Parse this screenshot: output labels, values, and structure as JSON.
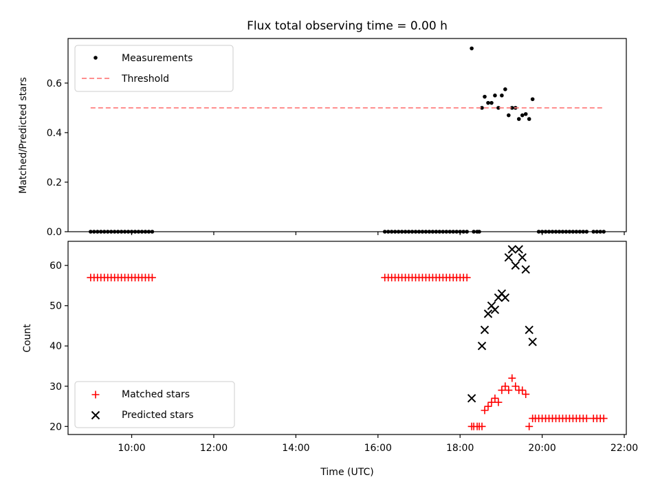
{
  "chart_data": [
    {
      "type": "scatter",
      "title": "Flux total observing time = 0.00 h",
      "ylabel": "Matched/Predicted stars",
      "xlim": [
        "08:27",
        "22:03"
      ],
      "ylim": [
        0,
        0.78
      ],
      "yticks": [
        "0.0",
        "0.2",
        "0.4",
        "0.6"
      ],
      "legend_placement": "top-left",
      "series": [
        {
          "name": "Measurements",
          "marker": "dot",
          "color": "#000000",
          "points": [
            [
              "09:00",
              0
            ],
            [
              "09:05",
              0
            ],
            [
              "09:10",
              0
            ],
            [
              "09:15",
              0
            ],
            [
              "09:20",
              0
            ],
            [
              "09:25",
              0
            ],
            [
              "09:30",
              0
            ],
            [
              "09:35",
              0
            ],
            [
              "09:40",
              0
            ],
            [
              "09:45",
              0
            ],
            [
              "09:50",
              0
            ],
            [
              "09:55",
              0
            ],
            [
              "10:00",
              0
            ],
            [
              "10:05",
              0
            ],
            [
              "10:10",
              0
            ],
            [
              "10:15",
              0
            ],
            [
              "10:20",
              0
            ],
            [
              "10:25",
              0
            ],
            [
              "10:30",
              0
            ],
            [
              "16:10",
              0
            ],
            [
              "16:15",
              0
            ],
            [
              "16:20",
              0
            ],
            [
              "16:25",
              0
            ],
            [
              "16:30",
              0
            ],
            [
              "16:35",
              0
            ],
            [
              "16:40",
              0
            ],
            [
              "16:45",
              0
            ],
            [
              "16:50",
              0
            ],
            [
              "16:55",
              0
            ],
            [
              "17:00",
              0
            ],
            [
              "17:05",
              0
            ],
            [
              "17:10",
              0
            ],
            [
              "17:15",
              0
            ],
            [
              "17:20",
              0
            ],
            [
              "17:25",
              0
            ],
            [
              "17:30",
              0
            ],
            [
              "17:35",
              0
            ],
            [
              "17:40",
              0
            ],
            [
              "17:45",
              0
            ],
            [
              "17:50",
              0
            ],
            [
              "17:55",
              0
            ],
            [
              "18:00",
              0
            ],
            [
              "18:05",
              0
            ],
            [
              "18:10",
              0
            ],
            [
              "18:17",
              0.74
            ],
            [
              "18:20",
              0
            ],
            [
              "18:25",
              0
            ],
            [
              "18:28",
              0
            ],
            [
              "18:32",
              0.5
            ],
            [
              "18:36",
              0.545
            ],
            [
              "18:41",
              0.52
            ],
            [
              "18:46",
              0.52
            ],
            [
              "18:51",
              0.55
            ],
            [
              "18:56",
              0.5
            ],
            [
              "19:01",
              0.55
            ],
            [
              "19:06",
              0.575
            ],
            [
              "19:11",
              0.47
            ],
            [
              "19:16",
              0.5
            ],
            [
              "19:21",
              0.5
            ],
            [
              "19:26",
              0.455
            ],
            [
              "19:31",
              0.47
            ],
            [
              "19:36",
              0.475
            ],
            [
              "19:41",
              0.455
            ],
            [
              "19:46",
              0.535
            ],
            [
              "19:55",
              0
            ],
            [
              "20:00",
              0
            ],
            [
              "20:05",
              0
            ],
            [
              "20:10",
              0
            ],
            [
              "20:15",
              0
            ],
            [
              "20:20",
              0
            ],
            [
              "20:25",
              0
            ],
            [
              "20:30",
              0
            ],
            [
              "20:35",
              0
            ],
            [
              "20:40",
              0
            ],
            [
              "20:45",
              0
            ],
            [
              "20:50",
              0
            ],
            [
              "20:55",
              0
            ],
            [
              "21:00",
              0
            ],
            [
              "21:05",
              0
            ],
            [
              "21:15",
              0
            ],
            [
              "21:20",
              0
            ],
            [
              "21:25",
              0
            ],
            [
              "21:30",
              0
            ]
          ]
        },
        {
          "name": "Threshold",
          "marker": "dashed-line",
          "color": "#ff7f7f",
          "points": [
            [
              "09:00",
              0.5
            ],
            [
              "21:30",
              0.5
            ]
          ]
        }
      ]
    },
    {
      "type": "scatter",
      "xlabel": "Time (UTC)",
      "ylabel": "Count",
      "xlim": [
        "08:27",
        "22:03"
      ],
      "ylim": [
        18,
        66
      ],
      "yticks": [
        "20",
        "30",
        "40",
        "50",
        "60"
      ],
      "xticks": [
        "10:00",
        "12:00",
        "14:00",
        "16:00",
        "18:00",
        "20:00",
        "22:00"
      ],
      "legend_placement": "bottom-left",
      "series": [
        {
          "name": "Matched stars",
          "marker": "plus",
          "color": "#ff0000",
          "points": [
            [
              "09:00",
              57
            ],
            [
              "09:05",
              57
            ],
            [
              "09:10",
              57
            ],
            [
              "09:15",
              57
            ],
            [
              "09:20",
              57
            ],
            [
              "09:25",
              57
            ],
            [
              "09:30",
              57
            ],
            [
              "09:35",
              57
            ],
            [
              "09:40",
              57
            ],
            [
              "09:45",
              57
            ],
            [
              "09:50",
              57
            ],
            [
              "09:55",
              57
            ],
            [
              "10:00",
              57
            ],
            [
              "10:05",
              57
            ],
            [
              "10:10",
              57
            ],
            [
              "10:15",
              57
            ],
            [
              "10:20",
              57
            ],
            [
              "10:25",
              57
            ],
            [
              "10:30",
              57
            ],
            [
              "16:10",
              57
            ],
            [
              "16:15",
              57
            ],
            [
              "16:20",
              57
            ],
            [
              "16:25",
              57
            ],
            [
              "16:30",
              57
            ],
            [
              "16:35",
              57
            ],
            [
              "16:40",
              57
            ],
            [
              "16:45",
              57
            ],
            [
              "16:50",
              57
            ],
            [
              "16:55",
              57
            ],
            [
              "17:00",
              57
            ],
            [
              "17:05",
              57
            ],
            [
              "17:10",
              57
            ],
            [
              "17:15",
              57
            ],
            [
              "17:20",
              57
            ],
            [
              "17:25",
              57
            ],
            [
              "17:30",
              57
            ],
            [
              "17:35",
              57
            ],
            [
              "17:40",
              57
            ],
            [
              "17:45",
              57
            ],
            [
              "17:50",
              57
            ],
            [
              "17:55",
              57
            ],
            [
              "18:00",
              57
            ],
            [
              "18:05",
              57
            ],
            [
              "18:10",
              57
            ],
            [
              "18:17",
              20
            ],
            [
              "18:20",
              20
            ],
            [
              "18:25",
              20
            ],
            [
              "18:28",
              20
            ],
            [
              "18:32",
              20
            ],
            [
              "18:36",
              24
            ],
            [
              "18:41",
              25
            ],
            [
              "18:46",
              26
            ],
            [
              "18:51",
              27
            ],
            [
              "18:56",
              26
            ],
            [
              "19:01",
              29
            ],
            [
              "19:06",
              30
            ],
            [
              "19:11",
              29
            ],
            [
              "19:16",
              32
            ],
            [
              "19:21",
              30
            ],
            [
              "19:26",
              29
            ],
            [
              "19:31",
              29
            ],
            [
              "19:36",
              28
            ],
            [
              "19:41",
              20
            ],
            [
              "19:46",
              22
            ],
            [
              "19:50",
              22
            ],
            [
              "19:55",
              22
            ],
            [
              "20:00",
              22
            ],
            [
              "20:05",
              22
            ],
            [
              "20:10",
              22
            ],
            [
              "20:15",
              22
            ],
            [
              "20:20",
              22
            ],
            [
              "20:25",
              22
            ],
            [
              "20:30",
              22
            ],
            [
              "20:35",
              22
            ],
            [
              "20:40",
              22
            ],
            [
              "20:45",
              22
            ],
            [
              "20:50",
              22
            ],
            [
              "20:55",
              22
            ],
            [
              "21:00",
              22
            ],
            [
              "21:05",
              22
            ],
            [
              "21:15",
              22
            ],
            [
              "21:20",
              22
            ],
            [
              "21:25",
              22
            ],
            [
              "21:30",
              22
            ]
          ]
        },
        {
          "name": "Predicted stars",
          "marker": "x",
          "color": "#000000",
          "points": [
            [
              "18:17",
              27
            ],
            [
              "18:32",
              40
            ],
            [
              "18:36",
              44
            ],
            [
              "18:41",
              48
            ],
            [
              "18:46",
              50
            ],
            [
              "18:51",
              49
            ],
            [
              "18:56",
              52
            ],
            [
              "19:01",
              53
            ],
            [
              "19:06",
              52
            ],
            [
              "19:11",
              62
            ],
            [
              "19:16",
              64
            ],
            [
              "19:21",
              60
            ],
            [
              "19:26",
              64
            ],
            [
              "19:31",
              62
            ],
            [
              "19:36",
              59
            ],
            [
              "19:41",
              44
            ],
            [
              "19:46",
              41
            ]
          ]
        }
      ]
    }
  ]
}
